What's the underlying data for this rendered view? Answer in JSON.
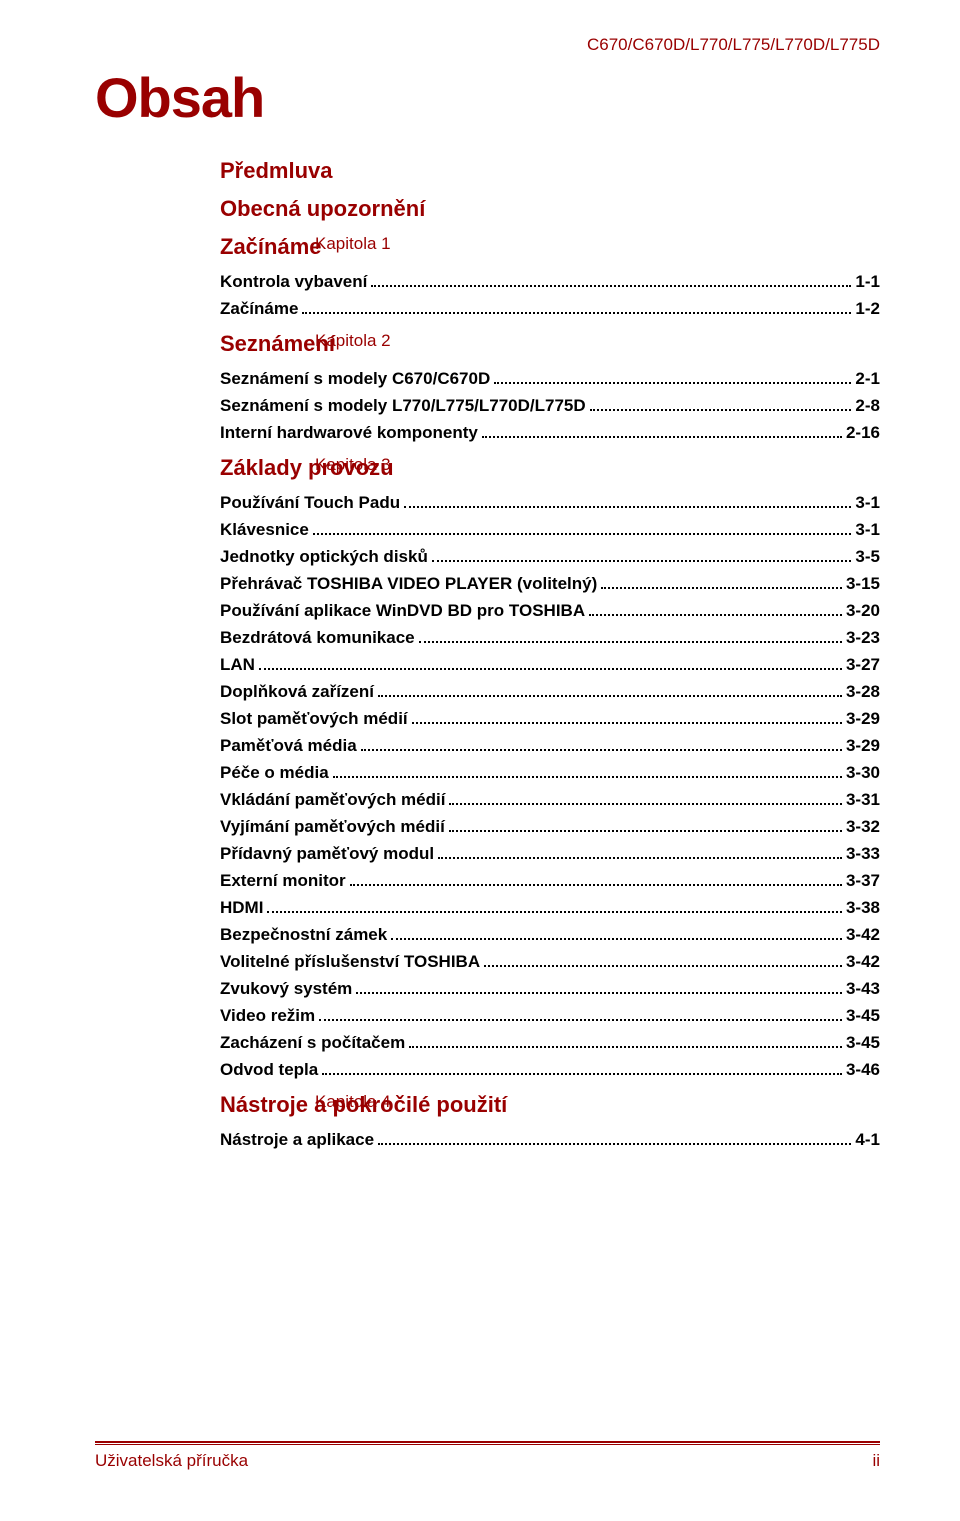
{
  "header_model": "C670/C670D/L770/L775/L770D/L775D",
  "title": "Obsah",
  "preface": "Předmluva",
  "general_notice": "Obecná upozornění",
  "chapters": [
    {
      "label": "Kapitola 1",
      "title": "Začínáme",
      "items": [
        {
          "label": "Kontrola vybavení",
          "page": "1-1"
        },
        {
          "label": "Začínáme",
          "page": "1-2"
        }
      ]
    },
    {
      "label": "Kapitola 2",
      "title": "Seznámení",
      "items": [
        {
          "label": "Seznámení s modely C670/C670D",
          "page": "2-1"
        },
        {
          "label": "Seznámení s modely L770/L775/L770D/L775D",
          "page": "2-8"
        },
        {
          "label": "Interní hardwarové komponenty",
          "page": "2-16"
        }
      ]
    },
    {
      "label": "Kapitola 3",
      "title": "Základy provozu",
      "items": [
        {
          "label": "Používání Touch Padu",
          "page": "3-1"
        },
        {
          "label": "Klávesnice",
          "page": "3-1"
        },
        {
          "label": "Jednotky optických disků",
          "page": "3-5"
        },
        {
          "label": "Přehrávač TOSHIBA VIDEO PLAYER (volitelný)",
          "page": "3-15"
        },
        {
          "label": "Používání aplikace WinDVD BD pro TOSHIBA",
          "page": "3-20"
        },
        {
          "label": "Bezdrátová komunikace",
          "page": "3-23"
        },
        {
          "label": "LAN",
          "page": "3-27"
        },
        {
          "label": "Doplňková zařízení",
          "page": "3-28"
        },
        {
          "label": "Slot paměťových médií",
          "page": "3-29"
        },
        {
          "label": "Paměťová média",
          "page": "3-29"
        },
        {
          "label": "Péče o média",
          "page": "3-30"
        },
        {
          "label": "Vkládání paměťových médií",
          "page": "3-31"
        },
        {
          "label": "Vyjímání paměťových médií",
          "page": "3-32"
        },
        {
          "label": "Přídavný paměťový modul",
          "page": "3-33"
        },
        {
          "label": "Externí monitor",
          "page": "3-37"
        },
        {
          "label": "HDMI",
          "page": "3-38"
        },
        {
          "label": "Bezpečnostní zámek",
          "page": "3-42"
        },
        {
          "label": "Volitelné příslušenství TOSHIBA",
          "page": "3-42"
        },
        {
          "label": "Zvukový systém",
          "page": "3-43"
        },
        {
          "label": "Video režim",
          "page": "3-45"
        },
        {
          "label": "Zacházení s počítačem",
          "page": "3-45"
        },
        {
          "label": "Odvod tepla",
          "page": "3-46"
        }
      ]
    },
    {
      "label": "Kapitola 4",
      "title": "Nástroje a pokročilé použití",
      "items": [
        {
          "label": "Nástroje a aplikace",
          "page": "4-1"
        }
      ]
    }
  ],
  "footer_left": "Uživatelská příručka",
  "footer_right": "ii"
}
